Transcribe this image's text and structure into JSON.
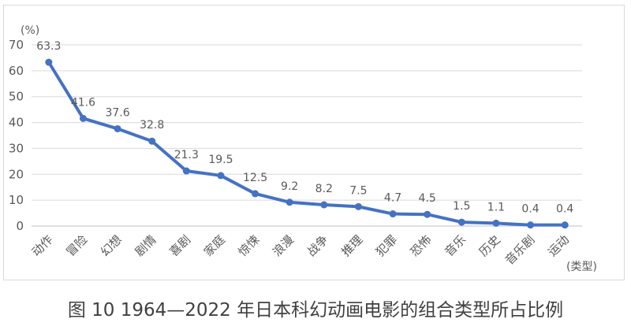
{
  "caption": "图 10  1964—2022 年日本科幻动画电影的组合类型所占比例",
  "chart_data": {
    "type": "line",
    "title": "",
    "ylabel": "(%)",
    "xlabel": "(类型)",
    "ylim": [
      0,
      70
    ],
    "yticks": [
      0,
      10,
      20,
      30,
      40,
      50,
      60,
      70
    ],
    "grid": true,
    "categories": [
      "动作",
      "冒险",
      "幻想",
      "剧情",
      "喜剧",
      "家庭",
      "惊悚",
      "浪漫",
      "战争",
      "推理",
      "犯罪",
      "恐怖",
      "音乐",
      "历史",
      "音乐剧",
      "运动"
    ],
    "values": [
      63.3,
      41.6,
      37.6,
      32.8,
      21.3,
      19.5,
      12.5,
      9.2,
      8.2,
      7.5,
      4.7,
      4.5,
      1.5,
      1.1,
      0.4,
      0.4
    ],
    "data_labels": [
      "63.3",
      "41.6",
      "37.6",
      "32.8",
      "21.3",
      "19.5",
      "12.5",
      "9.2",
      "8.2",
      "7.5",
      "4.7",
      "4.5",
      "1.5",
      "1.1",
      "0.4",
      "0.4"
    ],
    "line_color": "#4472c4"
  }
}
